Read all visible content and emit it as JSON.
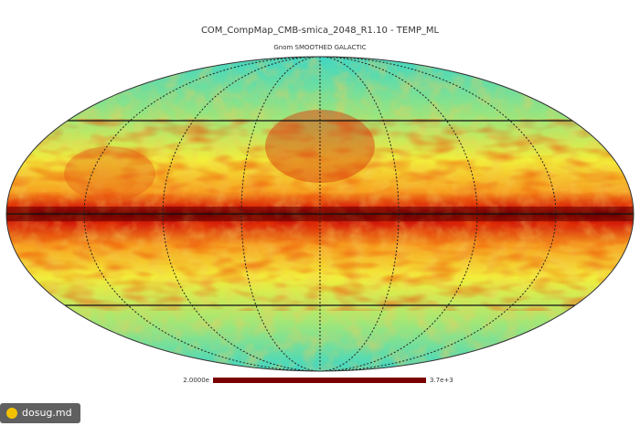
{
  "title": "COM_CompMap_CMB-smica_2048_R1.10 - TEMP_ML",
  "subtitle": "Gnom SMOOTHED GALACTIC",
  "colorbar": {
    "min_label": "2.0000e",
    "max_label": "3.7e+3"
  },
  "watermark": "dosug.md"
}
